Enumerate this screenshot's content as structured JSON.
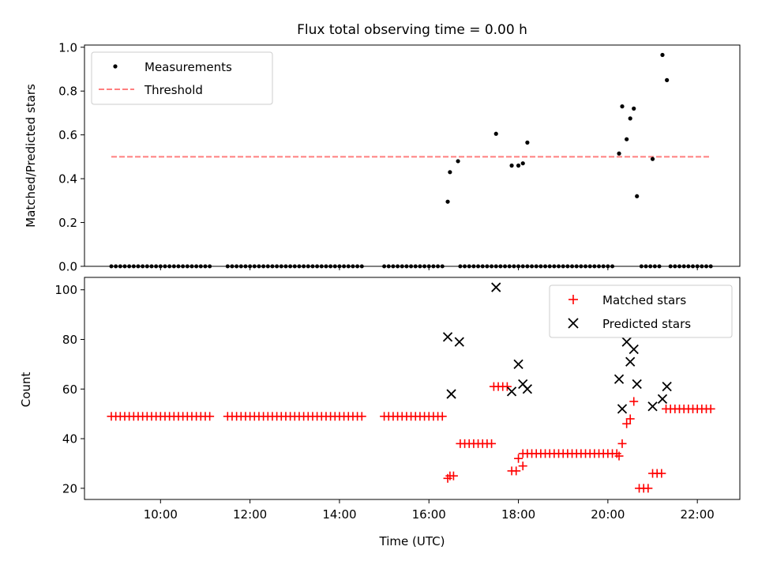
{
  "chart_data": [
    {
      "type": "scatter",
      "title": "Flux total observing time = 0.00 h",
      "xlabel": "",
      "ylabel": "Matched/Predicted stars",
      "xlim": [
        8.3,
        22.95
      ],
      "ylim": [
        0,
        1.01
      ],
      "yticks": [
        0.0,
        0.2,
        0.4,
        0.6,
        0.8,
        1.0
      ],
      "ytick_labels": [
        "0.0",
        "0.2",
        "0.4",
        "0.6",
        "0.8",
        "1.0"
      ],
      "xticks": [
        10,
        12,
        14,
        16,
        18,
        20,
        22
      ],
      "grid": false,
      "legend_position": "top-left",
      "series": [
        {
          "name": "Measurements",
          "color": "#000000",
          "marker": "dot",
          "points": [
            [
              16.42,
              0.295
            ],
            [
              16.47,
              0.43
            ],
            [
              16.65,
              0.48
            ],
            [
              17.5,
              0.605
            ],
            [
              17.85,
              0.46
            ],
            [
              18.0,
              0.46
            ],
            [
              18.1,
              0.47
            ],
            [
              18.2,
              0.565
            ],
            [
              20.25,
              0.515
            ],
            [
              20.32,
              0.73
            ],
            [
              20.42,
              0.58
            ],
            [
              20.5,
              0.675
            ],
            [
              20.58,
              0.72
            ],
            [
              20.65,
              0.32
            ],
            [
              21.0,
              0.49
            ],
            [
              21.22,
              0.965
            ],
            [
              21.32,
              0.85
            ]
          ],
          "zero_segments": [
            [
              8.9,
              11.1
            ],
            [
              11.5,
              14.5
            ],
            [
              15.0,
              16.3
            ],
            [
              16.7,
              18.3
            ],
            [
              18.4,
              20.15
            ],
            [
              20.75,
              20.95
            ],
            [
              21.05,
              21.2
            ],
            [
              21.4,
              22.3
            ]
          ]
        },
        {
          "name": "Threshold",
          "color": "#ff7f7f",
          "style": "dashed",
          "x": [
            8.9,
            22.3
          ],
          "y": [
            0.5,
            0.5
          ]
        }
      ]
    },
    {
      "type": "scatter",
      "title": "",
      "xlabel": "Time (UTC)",
      "ylabel": "Count",
      "xlim": [
        8.3,
        22.95
      ],
      "ylim": [
        15.5,
        105
      ],
      "yticks": [
        20,
        40,
        60,
        80,
        100
      ],
      "xticks": [
        10,
        12,
        14,
        16,
        18,
        20,
        22
      ],
      "xtick_labels": [
        "10:00",
        "12:00",
        "14:00",
        "16:00",
        "18:00",
        "20:00",
        "22:00"
      ],
      "grid": false,
      "legend_position": "top-right",
      "series": [
        {
          "name": "Matched stars",
          "color": "#ff0000",
          "marker": "plus",
          "runs": [
            [
              8.9,
              11.1,
              49
            ],
            [
              11.5,
              14.5,
              49
            ],
            [
              15.0,
              16.3,
              49
            ],
            [
              16.7,
              17.4,
              38
            ],
            [
              17.45,
              17.75,
              61
            ],
            [
              18.1,
              20.2,
              34
            ],
            [
              20.7,
              20.95,
              20
            ],
            [
              21.0,
              21.2,
              26
            ],
            [
              21.4,
              22.3,
              52
            ]
          ],
          "points": [
            [
              16.42,
              24
            ],
            [
              16.47,
              25
            ],
            [
              16.55,
              25
            ],
            [
              17.85,
              27
            ],
            [
              17.95,
              27
            ],
            [
              18.0,
              32
            ],
            [
              18.1,
              29
            ],
            [
              20.25,
              33
            ],
            [
              20.32,
              38
            ],
            [
              20.42,
              46
            ],
            [
              20.5,
              48
            ],
            [
              20.58,
              55
            ],
            [
              21.3,
              52
            ]
          ]
        },
        {
          "name": "Predicted stars",
          "color": "#000000",
          "marker": "x",
          "points": [
            [
              16.42,
              81
            ],
            [
              16.5,
              58
            ],
            [
              16.68,
              79
            ],
            [
              17.5,
              101
            ],
            [
              17.85,
              59
            ],
            [
              18.0,
              70
            ],
            [
              18.1,
              62
            ],
            [
              18.2,
              60
            ],
            [
              20.25,
              64
            ],
            [
              20.32,
              52
            ],
            [
              20.42,
              79
            ],
            [
              20.5,
              71
            ],
            [
              20.58,
              76
            ],
            [
              20.65,
              62
            ],
            [
              21.0,
              53
            ],
            [
              21.22,
              56
            ],
            [
              21.32,
              61
            ]
          ]
        }
      ]
    }
  ]
}
